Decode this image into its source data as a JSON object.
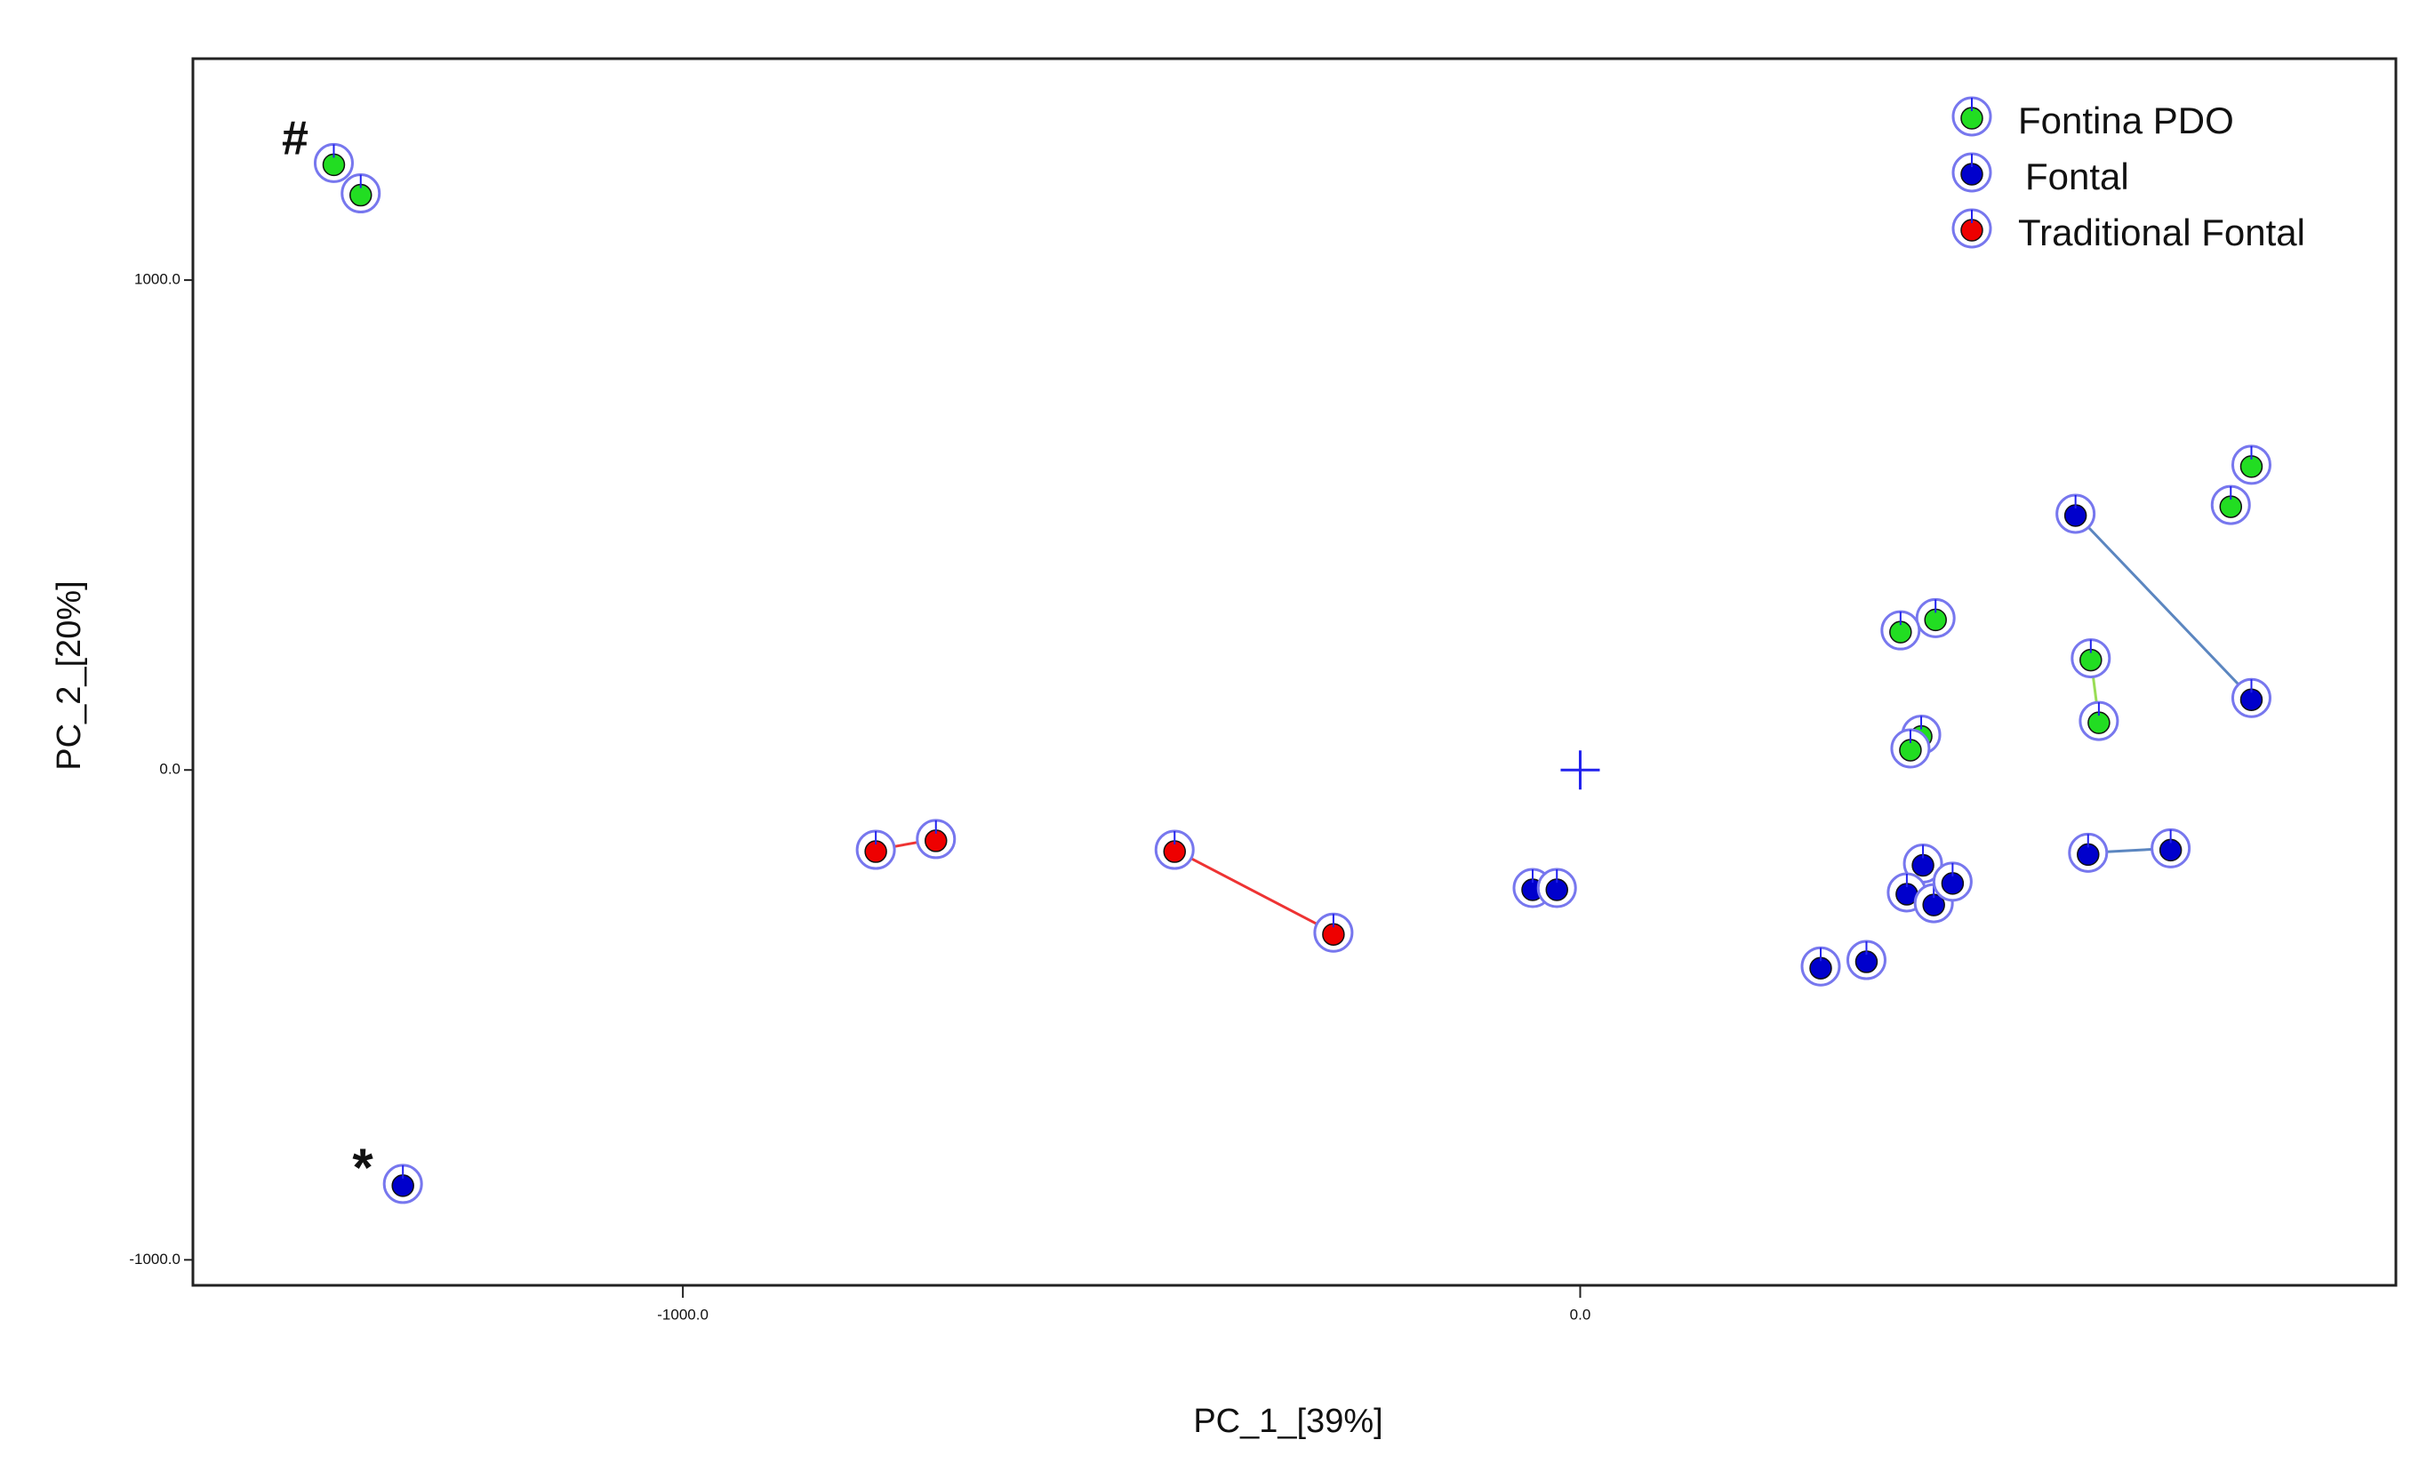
{
  "chart_data": {
    "type": "scatter",
    "x_label": "PC_1_[39%]",
    "y_label": "PC_2_[20%]",
    "xlim": [
      -1546,
      909
    ],
    "ylim": [
      -1052,
      1452
    ],
    "xticks": [
      {
        "value": -1000,
        "label": "-1000.0"
      },
      {
        "value": 0,
        "label": "0.0"
      }
    ],
    "yticks": [
      {
        "value": 1000,
        "label": "1000.0"
      },
      {
        "value": 0,
        "label": "0.0"
      },
      {
        "value": -1000,
        "label": "-1000.0"
      }
    ],
    "legend": "top-right",
    "annotations": [
      "#",
      "*"
    ],
    "series": [
      {
        "name": "Fontina PDO",
        "color": "#22dd22",
        "x": [
          -1389,
          -1359,
          748,
          725,
          396,
          357,
          569,
          578,
          380,
          368
        ],
        "values": [
          1239,
          1177,
          623,
          541,
          310,
          285,
          228,
          100,
          72,
          44
        ]
      },
      {
        "name": "Fontal",
        "color": "#0000cc",
        "x": [
          -1312,
          552,
          748,
          566,
          658,
          -53,
          -26,
          382,
          364,
          394,
          415,
          268,
          319
        ],
        "values": [
          -845,
          523,
          147,
          -169,
          -160,
          -241,
          -241,
          -191,
          -250,
          -272,
          -228,
          -401,
          -388
        ]
      },
      {
        "name": "Traditional Fontal",
        "color": "#ee0000",
        "x": [
          -785,
          -718,
          -452,
          -275
        ],
        "values": [
          -163,
          -141,
          -163,
          -332
        ]
      }
    ]
  }
}
